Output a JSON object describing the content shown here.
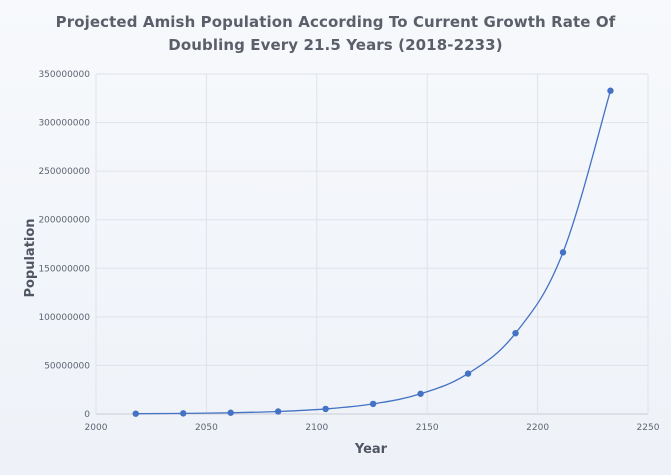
{
  "chart_data": {
    "type": "line",
    "title_line1": "Projected Amish Population According To Current Growth Rate Of",
    "title_line2": "Doubling Every 21.5 Years (2018-2233)",
    "xlabel": "Year",
    "ylabel": "Population",
    "xlim": [
      2000,
      2250
    ],
    "ylim": [
      0,
      350000000
    ],
    "x_ticks": [
      2000,
      2050,
      2100,
      2150,
      2200,
      2250
    ],
    "y_ticks": [
      0,
      50000000,
      100000000,
      150000000,
      200000000,
      250000000,
      300000000,
      350000000
    ],
    "grid": true,
    "series": [
      {
        "name": "Population",
        "color": "#4472c4",
        "x": [
          2018,
          2039.5,
          2061,
          2082.5,
          2104,
          2125.5,
          2147,
          2168.5,
          2190,
          2211.5,
          2233
        ],
        "values": [
          325000,
          650000,
          1300000,
          2600000,
          5200000,
          10400000,
          20800000,
          41600000,
          83200000,
          166400000,
          332800000
        ]
      }
    ]
  }
}
